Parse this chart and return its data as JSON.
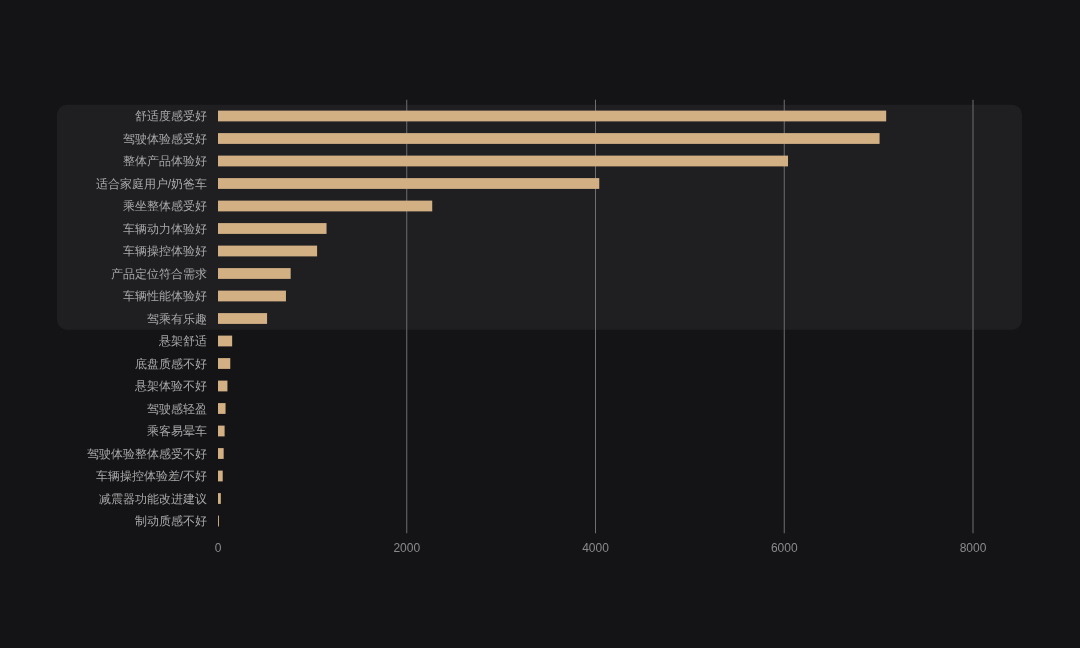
{
  "chart_data": {
    "type": "bar",
    "orientation": "horizontal",
    "categories": [
      "舒适度感受好",
      "驾驶体验感受好",
      "整体产品体验好",
      "适合家庭用户/奶爸车",
      "乘坐整体感受好",
      "车辆动力体验好",
      "车辆操控体验好",
      "产品定位符合需求",
      "车辆性能体验好",
      "驾乘有乐趣",
      "悬架舒适",
      "底盘质感不好",
      "悬架体验不好",
      "驾驶感轻盈",
      "乘客易晕车",
      "驾驶体验整体感受不好",
      "车辆操控体验差/不好",
      "减震器功能改进建议",
      "制动质感不好"
    ],
    "values": [
      7080,
      7010,
      6040,
      4040,
      2270,
      1150,
      1050,
      770,
      720,
      520,
      150,
      130,
      100,
      80,
      70,
      60,
      50,
      30,
      10
    ],
    "color": "#d2b084",
    "xlim": [
      0,
      8000
    ],
    "xticks": [
      0,
      2000,
      4000,
      6000,
      8000
    ],
    "grid": "x",
    "bands": [
      {
        "axis": "y",
        "from": "舒适度感受好",
        "to": "驾乘有乐趣",
        "color": "#1f1f21"
      }
    ]
  }
}
